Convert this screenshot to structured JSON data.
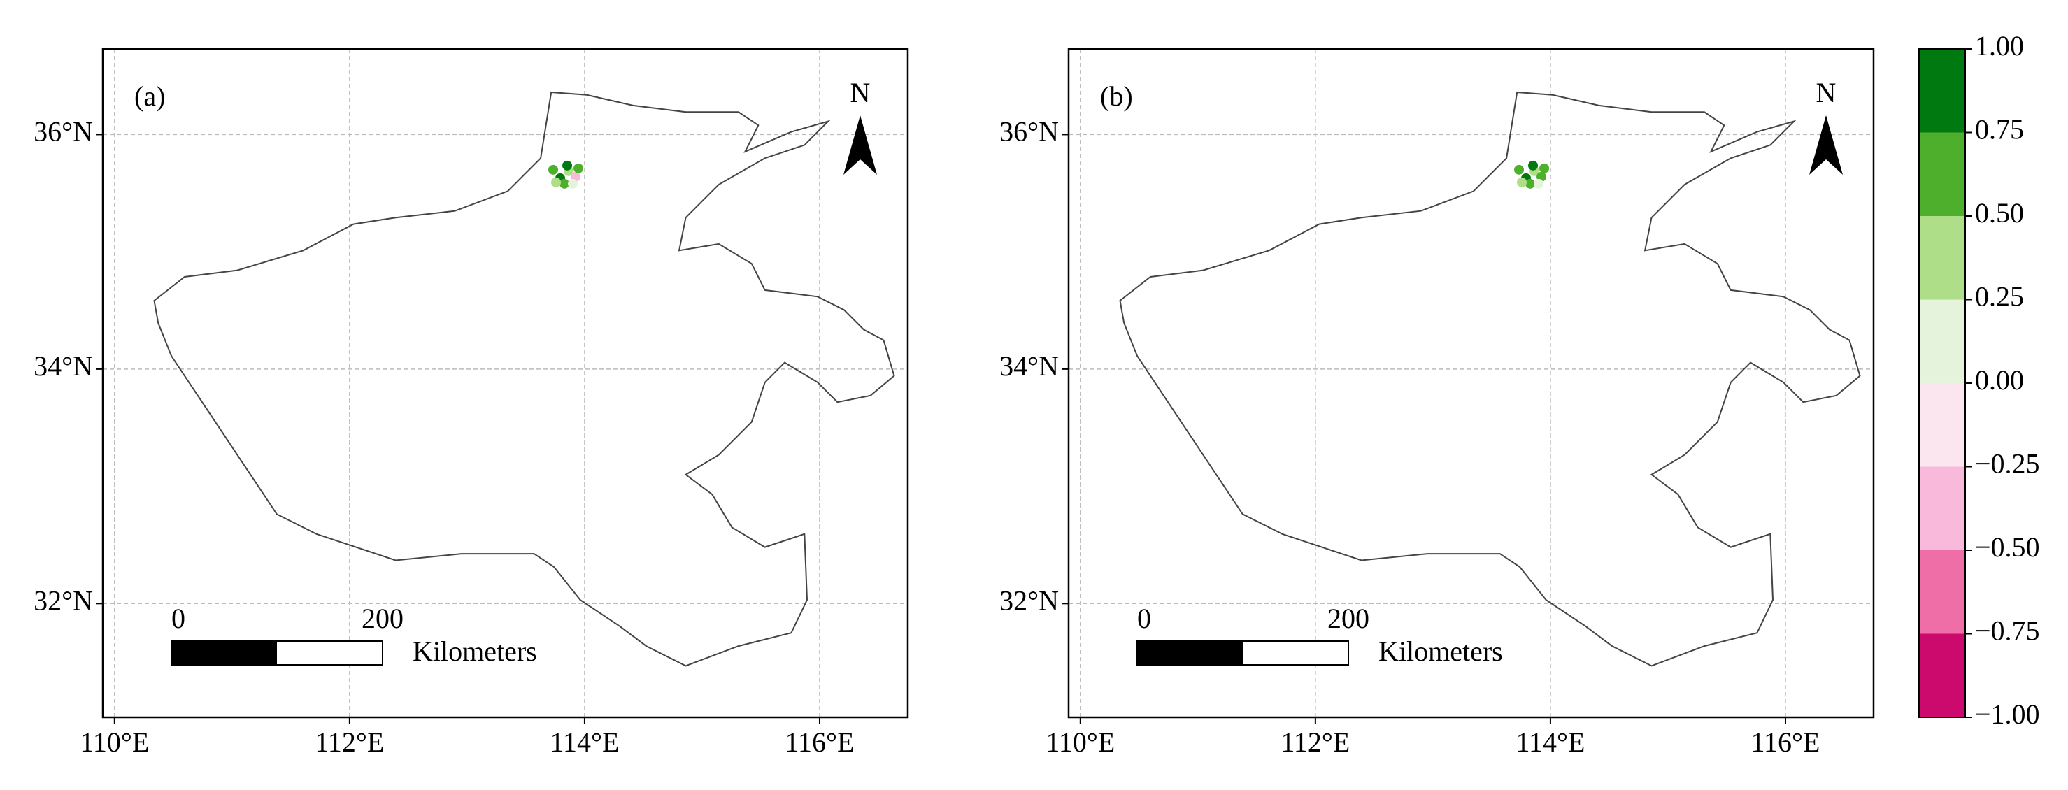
{
  "panels": [
    {
      "label": "(a)",
      "xlim": [
        109.9,
        116.75
      ],
      "ylim": [
        31.03,
        36.73
      ],
      "xticks": [
        {
          "value": 110,
          "label": "110°E"
        },
        {
          "value": 112,
          "label": "112°E"
        },
        {
          "value": 114,
          "label": "114°E"
        },
        {
          "value": 116,
          "label": "116°E"
        }
      ],
      "yticks": [
        {
          "value": 32,
          "label": "32°N"
        },
        {
          "value": 34,
          "label": "34°N"
        },
        {
          "value": 36,
          "label": "36°N"
        }
      ],
      "north": "N",
      "scale_bar": {
        "ticks": [
          0,
          200
        ],
        "unit": "Kilometers"
      }
    },
    {
      "label": "(b)",
      "xlim": [
        109.9,
        116.75
      ],
      "ylim": [
        31.03,
        36.73
      ],
      "xticks": [
        {
          "value": 110,
          "label": "110°E"
        },
        {
          "value": 112,
          "label": "112°E"
        },
        {
          "value": 114,
          "label": "114°E"
        },
        {
          "value": 116,
          "label": "116°E"
        }
      ],
      "yticks": [
        {
          "value": 32,
          "label": "32°N"
        },
        {
          "value": 34,
          "label": "34°N"
        },
        {
          "value": 36,
          "label": "36°N"
        }
      ],
      "north": "N",
      "scale_bar": {
        "ticks": [
          0,
          200
        ],
        "unit": "Kilometers"
      }
    }
  ],
  "colorbar": {
    "ylim": [
      -1,
      1
    ],
    "ticks": [
      {
        "value": -1,
        "label": "−1.00"
      },
      {
        "value": -0.75,
        "label": "−0.75"
      },
      {
        "value": -0.5,
        "label": "−0.50"
      },
      {
        "value": -0.25,
        "label": "−0.25"
      },
      {
        "value": 0,
        "label": "0.00"
      },
      {
        "value": 0.25,
        "label": "0.25"
      },
      {
        "value": 0.5,
        "label": "0.50"
      },
      {
        "value": 0.75,
        "label": "0.75"
      },
      {
        "value": 1,
        "label": "1.00"
      }
    ],
    "colors": [
      "#cc0a6e",
      "#f06ea7",
      "#f9b9da",
      "#fbe5ef",
      "#e6f3dc",
      "#aede87",
      "#4daf2c",
      "#007a10"
    ]
  }
}
